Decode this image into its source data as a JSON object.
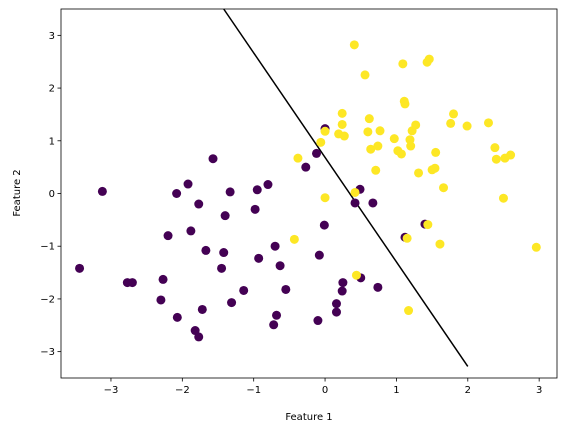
{
  "chart_data": {
    "type": "scatter",
    "xlabel": "Feature 1",
    "ylabel": "Feature 2",
    "xlim": [
      -3.7,
      3.25
    ],
    "ylim": [
      -3.5,
      3.5
    ],
    "xticks": [
      -3,
      -2,
      -1,
      0,
      1,
      2,
      3
    ],
    "yticks": [
      -3,
      -2,
      -1,
      0,
      1,
      2,
      3
    ],
    "grid": false,
    "decision_boundary": {
      "color": "#000000",
      "points": [
        [
          -1.42,
          3.5
        ],
        [
          2.0,
          -3.28
        ]
      ]
    },
    "series": [
      {
        "color": "#440154",
        "points": [
          [
            -3.44,
            -1.42
          ],
          [
            -3.12,
            0.04
          ],
          [
            -2.77,
            -1.69
          ],
          [
            -2.7,
            -1.69
          ],
          [
            -2.3,
            -2.02
          ],
          [
            -2.27,
            -1.63
          ],
          [
            -2.2,
            -0.8
          ],
          [
            -2.07,
            -2.35
          ],
          [
            -2.08,
            0.0
          ],
          [
            -1.92,
            0.18
          ],
          [
            -1.88,
            -0.71
          ],
          [
            -1.82,
            -2.6
          ],
          [
            -1.77,
            -2.72
          ],
          [
            -1.77,
            -0.2
          ],
          [
            -1.72,
            -2.2
          ],
          [
            -1.67,
            -1.08
          ],
          [
            -1.57,
            0.66
          ],
          [
            -1.45,
            -1.42
          ],
          [
            -1.42,
            -1.12
          ],
          [
            -1.4,
            -0.42
          ],
          [
            -1.33,
            0.03
          ],
          [
            -1.31,
            -2.07
          ],
          [
            -1.14,
            -1.84
          ],
          [
            -0.98,
            -0.3
          ],
          [
            -0.95,
            0.07
          ],
          [
            -0.93,
            -1.23
          ],
          [
            -0.8,
            0.17
          ],
          [
            -0.7,
            -1.0
          ],
          [
            -0.72,
            -2.49
          ],
          [
            -0.68,
            -2.31
          ],
          [
            -0.63,
            -1.37
          ],
          [
            -0.55,
            -1.82
          ],
          [
            -0.27,
            0.5
          ],
          [
            -0.12,
            0.76
          ],
          [
            -0.1,
            -2.41
          ],
          [
            -0.08,
            -1.17
          ],
          [
            -0.01,
            -0.6
          ],
          [
            0.0,
            1.23
          ],
          [
            0.16,
            -2.09
          ],
          [
            0.16,
            -2.25
          ],
          [
            0.25,
            -1.69
          ],
          [
            0.24,
            -1.85
          ],
          [
            0.42,
            -0.18
          ],
          [
            0.49,
            0.08
          ],
          [
            0.5,
            -1.6
          ],
          [
            0.67,
            -0.18
          ],
          [
            0.74,
            -1.78
          ],
          [
            1.12,
            -0.83
          ],
          [
            1.4,
            -0.58
          ]
        ]
      },
      {
        "color": "#fde725",
        "points": [
          [
            -0.43,
            -0.87
          ],
          [
            -0.38,
            0.67
          ],
          [
            -0.06,
            0.97
          ],
          [
            0.0,
            -0.08
          ],
          [
            0.0,
            1.18
          ],
          [
            0.19,
            1.13
          ],
          [
            0.24,
            1.52
          ],
          [
            0.27,
            1.09
          ],
          [
            0.24,
            1.31
          ],
          [
            0.41,
            2.82
          ],
          [
            0.42,
            0.02
          ],
          [
            0.44,
            -1.55
          ],
          [
            0.56,
            2.25
          ],
          [
            0.6,
            1.17
          ],
          [
            0.62,
            1.42
          ],
          [
            0.64,
            0.84
          ],
          [
            0.71,
            0.44
          ],
          [
            0.74,
            0.9
          ],
          [
            0.77,
            1.19
          ],
          [
            0.97,
            1.04
          ],
          [
            1.02,
            0.81
          ],
          [
            1.07,
            0.75
          ],
          [
            1.09,
            2.46
          ],
          [
            1.11,
            1.75
          ],
          [
            1.12,
            1.7
          ],
          [
            1.15,
            -0.85
          ],
          [
            1.17,
            -2.22
          ],
          [
            1.19,
            1.02
          ],
          [
            1.2,
            0.9
          ],
          [
            1.22,
            1.19
          ],
          [
            1.27,
            1.3
          ],
          [
            1.31,
            0.39
          ],
          [
            1.43,
            2.49
          ],
          [
            1.46,
            2.55
          ],
          [
            1.44,
            -0.59
          ],
          [
            1.5,
            0.45
          ],
          [
            1.54,
            0.48
          ],
          [
            1.55,
            0.78
          ],
          [
            1.61,
            -0.96
          ],
          [
            1.66,
            0.11
          ],
          [
            1.76,
            1.33
          ],
          [
            1.8,
            1.51
          ],
          [
            1.99,
            1.28
          ],
          [
            2.29,
            1.34
          ],
          [
            2.38,
            0.87
          ],
          [
            2.4,
            0.65
          ],
          [
            2.5,
            -0.09
          ],
          [
            2.52,
            0.67
          ],
          [
            2.6,
            0.73
          ],
          [
            2.96,
            -1.02
          ]
        ]
      }
    ]
  }
}
